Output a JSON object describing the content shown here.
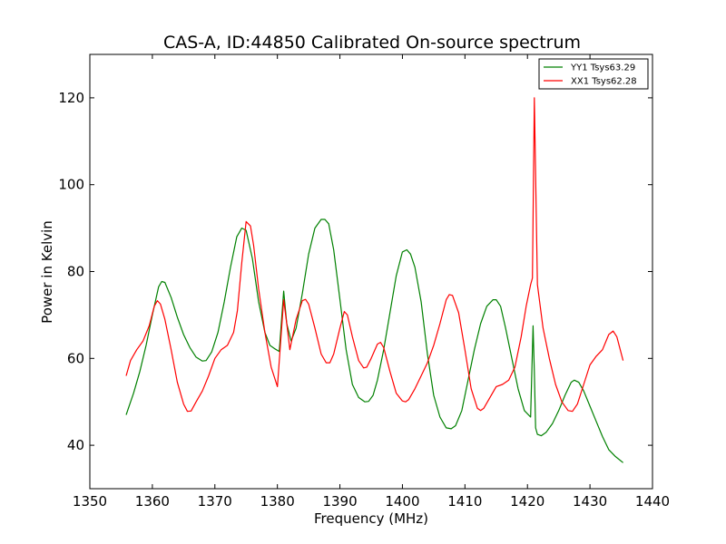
{
  "chart_data": {
    "type": "line",
    "title": "CAS-A, ID:44850 Calibrated On-source spectrum",
    "xlabel": "Frequency (MHz)",
    "ylabel": "Power in Kelvin",
    "xlim": [
      1350,
      1440
    ],
    "ylim": [
      30,
      130
    ],
    "x_ticks": [
      1350,
      1360,
      1370,
      1380,
      1390,
      1400,
      1410,
      1420,
      1430,
      1440
    ],
    "y_ticks": [
      40,
      60,
      80,
      100,
      120
    ],
    "grid": false,
    "legend_position": "top-right",
    "series": [
      {
        "name": "YY1 Tsys63.29",
        "color": "#008000",
        "x": [
          1355.8,
          1357,
          1358,
          1359,
          1360,
          1361,
          1361.5,
          1362,
          1363,
          1364,
          1365,
          1366,
          1367,
          1368,
          1368.6,
          1369.5,
          1370.5,
          1371.5,
          1372.5,
          1373.5,
          1374.3,
          1375,
          1376,
          1377,
          1378,
          1378.8,
          1379.5,
          1380.3,
          1381,
          1381.5,
          1382.2,
          1383,
          1384,
          1385,
          1386,
          1387,
          1387.6,
          1388.2,
          1389,
          1390,
          1391,
          1392,
          1393,
          1394,
          1394.6,
          1395.3,
          1396,
          1397,
          1398,
          1399,
          1400,
          1400.7,
          1401.3,
          1402,
          1403,
          1404,
          1405,
          1406,
          1407,
          1407.8,
          1408.5,
          1409.5,
          1410.5,
          1411.5,
          1412.5,
          1413.5,
          1414.5,
          1415,
          1415.7,
          1416.5,
          1417.5,
          1418.5,
          1419.5,
          1420.5,
          1420.9,
          1421.1,
          1421.3,
          1421.6,
          1422.2,
          1423,
          1424,
          1425,
          1426,
          1427,
          1427.5,
          1428.2,
          1429,
          1430,
          1431,
          1432,
          1433,
          1434,
          1435.3
        ],
        "values": [
          47,
          52,
          57,
          63,
          70,
          76.5,
          77.7,
          77.5,
          74,
          69.5,
          65.5,
          62.5,
          60.3,
          59.4,
          59.5,
          61.5,
          66,
          73,
          81,
          88,
          90,
          89.5,
          83,
          73,
          66,
          63,
          62.3,
          61.6,
          75.5,
          68,
          64,
          67,
          75,
          84,
          90,
          92,
          92,
          91,
          85,
          73.5,
          62,
          54,
          51,
          50,
          50.1,
          51.5,
          55,
          62,
          70.5,
          79,
          84.5,
          85,
          84,
          81,
          73,
          61,
          51.5,
          46.5,
          44,
          43.8,
          44.5,
          48,
          55,
          62,
          68,
          72,
          73.5,
          73.5,
          72,
          67,
          60,
          53,
          48,
          46.5,
          67.5,
          57,
          44,
          42.5,
          42.2,
          43,
          45,
          48,
          51.5,
          54.5,
          55,
          54.5,
          52.5,
          49,
          45.5,
          42,
          39,
          37.5,
          36
        ]
      },
      {
        "name": "XX1 Tsys62.28",
        "color": "#ff0000",
        "x": [
          1355.8,
          1356.5,
          1357.5,
          1358.5,
          1359.5,
          1360.3,
          1360.8,
          1361.3,
          1362,
          1363,
          1364,
          1365,
          1365.6,
          1366.2,
          1367,
          1368,
          1369,
          1370,
          1371,
          1372,
          1373,
          1373.6,
          1374.3,
          1375,
          1375.7,
          1376.2,
          1377,
          1378,
          1379,
          1380,
          1381,
          1381.5,
          1382,
          1383,
          1384,
          1384.5,
          1385,
          1386,
          1387,
          1387.8,
          1388.4,
          1389,
          1390,
          1390.7,
          1391.2,
          1392,
          1393,
          1393.8,
          1394.3,
          1395,
          1396,
          1396.5,
          1397,
          1398,
          1399,
          1400,
          1400.5,
          1401,
          1402,
          1403,
          1404,
          1405,
          1406,
          1407,
          1407.5,
          1408,
          1409,
          1410,
          1411,
          1412,
          1412.5,
          1413,
          1414,
          1415,
          1416,
          1417,
          1418,
          1419,
          1419.8,
          1420.5,
          1420.8,
          1421.1,
          1421.6,
          1422.5,
          1423.5,
          1424.5,
          1425.5,
          1426.5,
          1427.2,
          1428,
          1429,
          1430,
          1431,
          1432,
          1433,
          1433.7,
          1434.3,
          1435.3
        ],
        "values": [
          56,
          59.5,
          62,
          64,
          67.5,
          72,
          73.3,
          72.5,
          69,
          62,
          54.5,
          49.5,
          47.8,
          47.9,
          50,
          52.5,
          56,
          60,
          62,
          63,
          66,
          71,
          82,
          91.5,
          90.5,
          86,
          76,
          66,
          58,
          53.5,
          73.5,
          68,
          62,
          69,
          73.3,
          73.6,
          72.5,
          67,
          61,
          59,
          59,
          61,
          67,
          70.8,
          70,
          65,
          59.5,
          57.8,
          58,
          60,
          63.3,
          63.7,
          62.5,
          57,
          52,
          50.2,
          50,
          50.5,
          53,
          56,
          59,
          63,
          68,
          73.5,
          74.7,
          74.5,
          70.5,
          62,
          53,
          48.5,
          48,
          48.5,
          51,
          53.5,
          54,
          55,
          58,
          65,
          72,
          77,
          78.5,
          120,
          77,
          67,
          60,
          54,
          50,
          48,
          47.8,
          49.5,
          54,
          58.5,
          60.5,
          62,
          65.5,
          66.3,
          65,
          59.5
        ]
      }
    ]
  }
}
